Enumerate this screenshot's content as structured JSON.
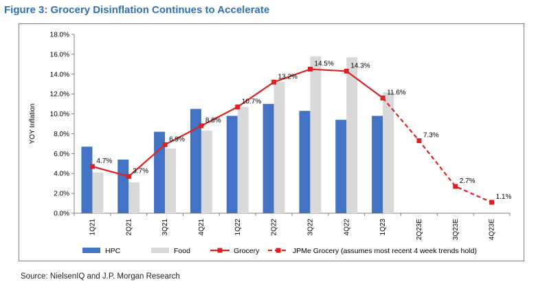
{
  "title": "Figure 3: Grocery Disinflation Continues to Accelerate",
  "source": "Source: NielsenIQ and J.P. Morgan Research",
  "chart_data": {
    "type": "bar",
    "title": "",
    "xlabel": "",
    "ylabel": "YOY Inflation",
    "ylim": [
      0,
      18
    ],
    "yticks": [
      "0.0%",
      "2.0%",
      "4.0%",
      "6.0%",
      "8.0%",
      "10.0%",
      "12.0%",
      "14.0%",
      "16.0%",
      "18.0%"
    ],
    "categories": [
      "1Q21",
      "2Q21",
      "3Q21",
      "4Q21",
      "1Q22",
      "2Q22",
      "3Q22",
      "4Q22",
      "1Q23",
      "2Q23E",
      "3Q23E",
      "4Q23E"
    ],
    "grid": false,
    "legend_position": "bottom",
    "series": [
      {
        "name": "HPC",
        "type": "bar",
        "color": "#4472c4",
        "values": [
          6.7,
          5.4,
          8.2,
          10.5,
          9.8,
          11.0,
          10.3,
          9.4,
          9.8,
          null,
          null,
          null
        ]
      },
      {
        "name": "Food",
        "type": "bar",
        "color": "#d9d9d9",
        "values": [
          4.1,
          3.1,
          6.5,
          8.3,
          10.7,
          13.2,
          15.8,
          15.7,
          12.2,
          null,
          null,
          null
        ]
      },
      {
        "name": "Grocery",
        "type": "line",
        "color": "#e02020",
        "values": [
          4.7,
          3.7,
          6.9,
          8.8,
          10.7,
          13.2,
          14.5,
          14.3,
          11.6,
          null,
          null,
          null
        ],
        "labels": [
          "4.7%",
          "3.7%",
          "6.9%",
          "8.8%",
          "10.7%",
          "13.2%",
          "14.5%",
          "14.3%",
          "11.6%",
          "",
          "",
          ""
        ]
      },
      {
        "name": "JPMe Grocery (assumes most recent 4 week trends hold)",
        "type": "line-dashed",
        "color": "#e02020",
        "values": [
          null,
          null,
          null,
          null,
          null,
          null,
          null,
          null,
          11.6,
          7.3,
          2.7,
          1.1
        ],
        "labels": [
          "",
          "",
          "",
          "",
          "",
          "",
          "",
          "",
          "",
          "7.3%",
          "2.7%",
          "1.1%"
        ]
      }
    ]
  }
}
